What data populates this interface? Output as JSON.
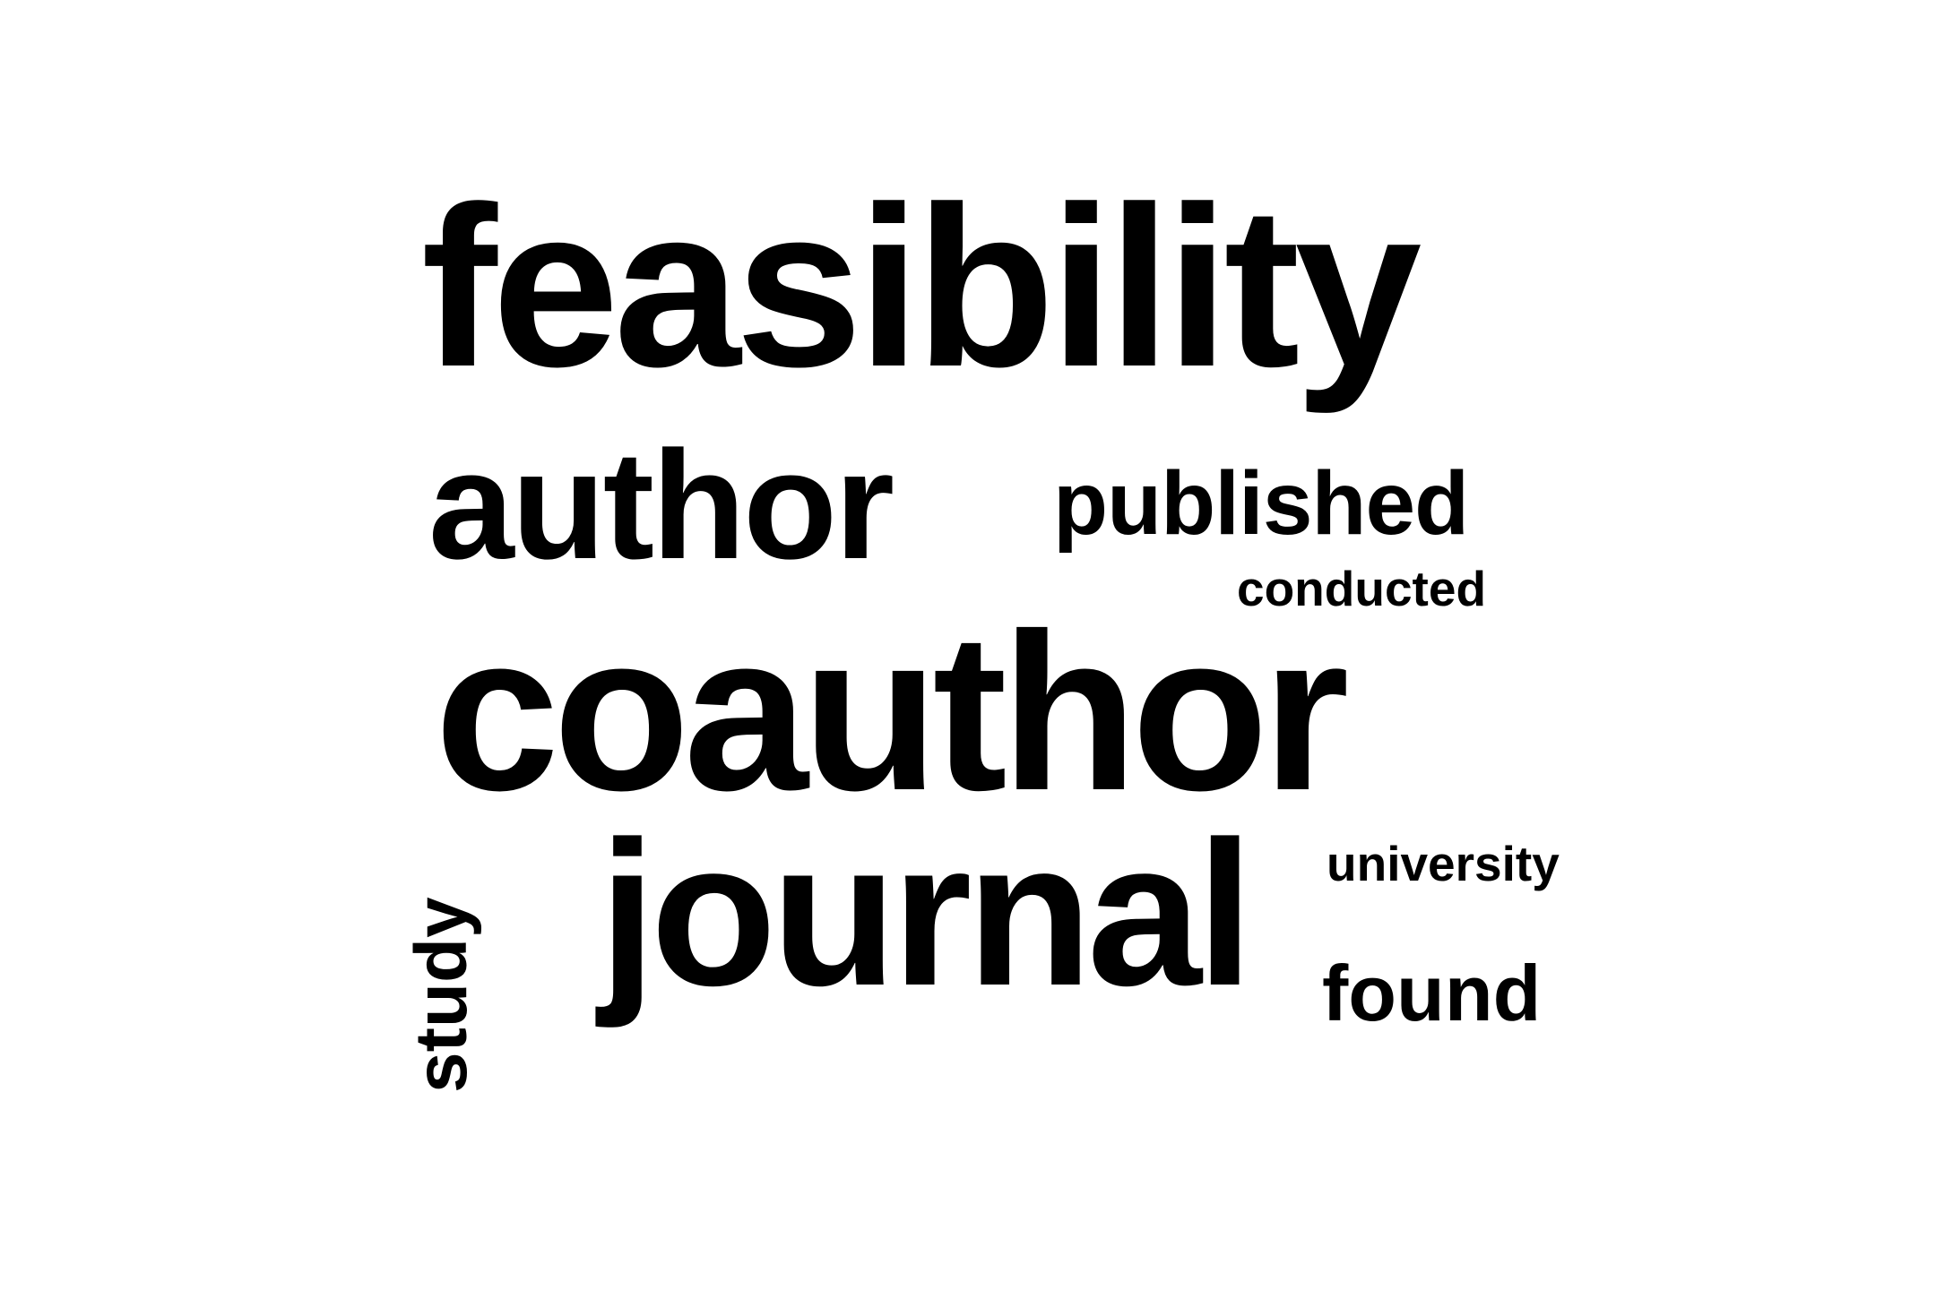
{
  "words": {
    "feasibility": "feasibility",
    "author": "author",
    "published": "published",
    "conducted": "conducted",
    "coauthor": "coauthor",
    "university": "university",
    "journal": "journal",
    "found": "found",
    "study": "study"
  },
  "colors": {
    "background": "#ffffff",
    "text": "#000000"
  }
}
